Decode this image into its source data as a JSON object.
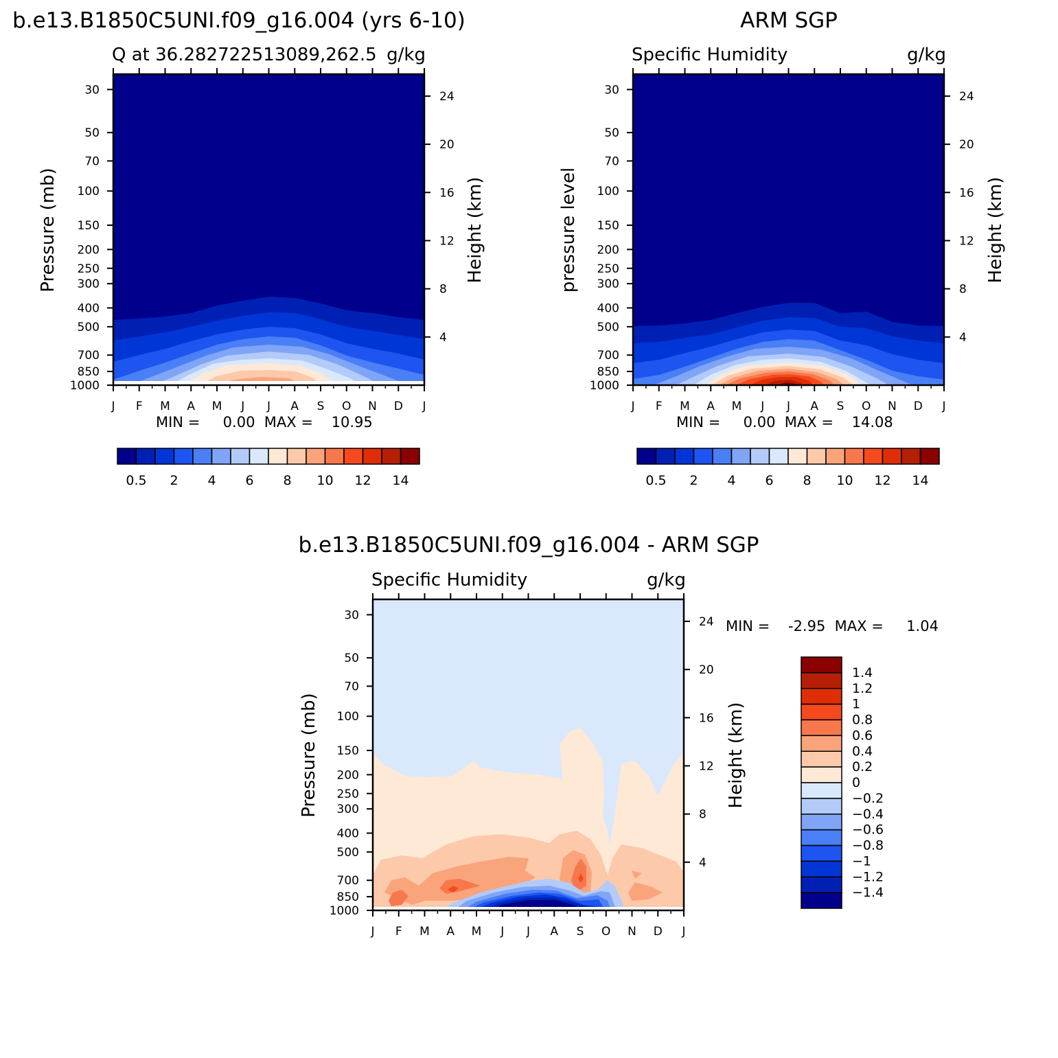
{
  "month_labels": [
    "J",
    "F",
    "M",
    "A",
    "M",
    "J",
    "J",
    "A",
    "S",
    "O",
    "N",
    "D",
    "J"
  ],
  "top_left": {
    "main_title": "b.e13.B1850C5UNI.f09_g16.004 (yrs 6-10)",
    "left_string": "Q at 36.282722513089,262.5",
    "right_string": "g/kg",
    "ylabel": "Pressure (mb)",
    "ylabel_right": "Height (km)",
    "minmax": "MIN =     0.00  MAX =    10.95"
  },
  "top_right": {
    "main_title": "ARM SGP",
    "left_string": "Specific Humidity",
    "right_string": "g/kg",
    "ylabel": "pressure level",
    "ylabel_right": "Height (km)",
    "minmax": "MIN =     0.00  MAX =    14.08"
  },
  "bottom": {
    "main_title": "b.e13.B1850C5UNI.f09_g16.004 - ARM SGP",
    "left_string": "Specific Humidity",
    "right_string": "g/kg",
    "ylabel": "Pressure (mb)",
    "ylabel_right": "Height (km)",
    "minmax": "MIN =    -2.95  MAX =     1.04"
  },
  "abs_colorbar": {
    "colors": [
      "#00008c",
      "#0020b4",
      "#0035d6",
      "#1e55f0",
      "#4a7ff5",
      "#80a5f7",
      "#b3cbf9",
      "#dae8fc",
      "#fde9d6",
      "#fcc9aa",
      "#faa47c",
      "#f8784d",
      "#f54a1e",
      "#df2e05",
      "#b51f06",
      "#8b0000"
    ],
    "tick_labels": [
      "0.5",
      "2",
      "4",
      "6",
      "8",
      "10",
      "12",
      "14"
    ]
  },
  "diff_colorbar": {
    "colors": [
      "#8b0000",
      "#b51f06",
      "#df2e05",
      "#f54a1e",
      "#f8784d",
      "#faa47c",
      "#fcc9aa",
      "#fde9d6",
      "#dae8fc",
      "#b3cbf9",
      "#80a5f7",
      "#4a7ff5",
      "#1e55f0",
      "#0035d6",
      "#0020b4",
      "#00008c"
    ],
    "tick_labels": [
      "1.4",
      "1.2",
      "1",
      "0.8",
      "0.6",
      "0.4",
      "0.2",
      "0",
      "-0.2",
      "-0.4",
      "-0.6",
      "-0.8",
      "-1",
      "-1.2",
      "-1.4"
    ]
  },
  "chart_data": [
    {
      "type": "heatmap",
      "title": "b.e13.B1850C5UNI.f09_g16.004 (yrs 6-10)",
      "subtitle": "Q at 36.282722513089,262.5",
      "units": "g/kg",
      "xlabel": "",
      "ylabel": "Pressure (mb)",
      "ylabel_right": "Height (km)",
      "x_categories": [
        "J",
        "F",
        "M",
        "A",
        "M",
        "J",
        "J",
        "A",
        "S",
        "O",
        "N",
        "D",
        "J"
      ],
      "y_ticks_pressure": [
        30,
        50,
        70,
        100,
        150,
        200,
        250,
        300,
        400,
        500,
        700,
        850,
        1000
      ],
      "y_ticks_height_km": [
        4,
        8,
        12,
        16,
        20,
        24
      ],
      "ylim_mb": [
        1000,
        25
      ],
      "y_scale": "log",
      "min": 0.0,
      "max": 10.95,
      "contour_levels": [
        0.5,
        1,
        2,
        3,
        4,
        5,
        6,
        7,
        8,
        9,
        10,
        11,
        12,
        13,
        14
      ],
      "approx_top_of_moist_layer_mb": [
        480,
        465,
        455,
        445,
        400,
        375,
        355,
        360,
        405,
        430,
        450,
        465,
        480
      ],
      "peak_surface_values_approx": [
        3,
        3.5,
        5,
        7,
        9,
        10.5,
        10.95,
        10,
        8,
        6,
        4,
        3,
        3
      ]
    },
    {
      "type": "heatmap",
      "title": "ARM SGP",
      "subtitle": "Specific Humidity",
      "units": "g/kg",
      "xlabel": "",
      "ylabel": "pressure level",
      "ylabel_right": "Height (km)",
      "x_categories": [
        "J",
        "F",
        "M",
        "A",
        "M",
        "J",
        "J",
        "A",
        "S",
        "O",
        "N",
        "D",
        "J"
      ],
      "y_ticks_pressure": [
        30,
        50,
        70,
        100,
        150,
        200,
        250,
        300,
        400,
        500,
        700,
        850,
        1000
      ],
      "y_ticks_height_km": [
        4,
        8,
        12,
        16,
        20,
        24
      ],
      "ylim_mb": [
        1000,
        25
      ],
      "y_scale": "log",
      "min": 0.0,
      "max": 14.08,
      "contour_levels": [
        0.5,
        1,
        2,
        3,
        4,
        5,
        6,
        7,
        8,
        9,
        10,
        11,
        12,
        13,
        14
      ],
      "approx_top_of_moist_layer_mb": [
        500,
        495,
        485,
        470,
        430,
        400,
        385,
        395,
        445,
        435,
        470,
        495,
        500
      ],
      "peak_surface_values_approx": [
        3,
        3.5,
        5,
        7,
        10,
        13,
        14.08,
        13,
        10,
        6,
        4,
        3,
        3
      ]
    },
    {
      "type": "heatmap",
      "title": "b.e13.B1850C5UNI.f09_g16.004 - ARM SGP",
      "subtitle": "Specific Humidity",
      "units": "g/kg",
      "xlabel": "",
      "ylabel": "Pressure (mb)",
      "ylabel_right": "Height (km)",
      "x_categories": [
        "J",
        "F",
        "M",
        "A",
        "M",
        "J",
        "J",
        "A",
        "S",
        "O",
        "N",
        "D",
        "J"
      ],
      "y_ticks_pressure": [
        30,
        50,
        70,
        100,
        150,
        200,
        250,
        300,
        400,
        500,
        700,
        850,
        1000
      ],
      "y_ticks_height_km": [
        4,
        8,
        12,
        16,
        20,
        24
      ],
      "ylim_mb": [
        1000,
        25
      ],
      "y_scale": "log",
      "min": -2.95,
      "max": 1.04,
      "contour_levels": [
        -1.4,
        -1.2,
        -1,
        -0.8,
        -0.6,
        -0.4,
        -0.2,
        0,
        0.2,
        0.4,
        0.6,
        0.8,
        1,
        1.2,
        1.4
      ],
      "features": [
        "weak negative (-0.2 to 0) above ~200 mb",
        "weak positive (0 to 0.2) between ~200 mb and ~450 mb",
        "positive 0.2-0.6 between ~450 mb and ~800 mb",
        "local maxima near 0.8 in Feb, Apr and Sep",
        "strong negative below -1.4 near surface in Jun-Aug"
      ]
    }
  ]
}
